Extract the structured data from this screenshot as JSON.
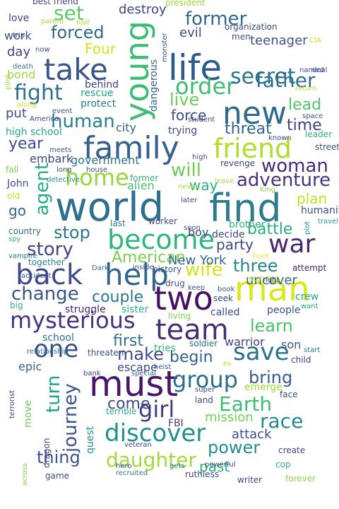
{
  "words": [
    {
      "text": "world",
      "color": "#2c6f8e"
    },
    {
      "text": "find",
      "color": "#2c7c8d"
    },
    {
      "text": "life",
      "color": "#2c5a8c"
    },
    {
      "text": "family",
      "color": "#35608d"
    },
    {
      "text": "two",
      "color": "#450f63"
    },
    {
      "text": "man",
      "color": "#dbe61c"
    },
    {
      "text": "must",
      "color": "#49156c"
    },
    {
      "text": "young",
      "color": "#3bbd73"
    },
    {
      "text": "take",
      "color": "#3a548c"
    },
    {
      "text": "new",
      "color": "#2f6b8e"
    },
    {
      "text": "help",
      "color": "#33648d"
    },
    {
      "text": "become",
      "color": "#30b57c"
    },
    {
      "text": "friend",
      "color": "#b0dd2f"
    },
    {
      "text": "team",
      "color": "#46306e"
    },
    {
      "text": "back",
      "color": "#3e4a89"
    },
    {
      "text": "mysterious",
      "color": "#463480"
    },
    {
      "text": "one",
      "color": "#3b518a"
    },
    {
      "text": "discover",
      "color": "#21908c"
    },
    {
      "text": "order",
      "color": "#40bd72"
    },
    {
      "text": "home",
      "color": "#95d840"
    },
    {
      "text": "secret",
      "color": "#2b748e"
    },
    {
      "text": "fight",
      "color": "#2d708e"
    },
    {
      "text": "save",
      "color": "#2c728e"
    },
    {
      "text": "group",
      "color": "#2e6d8e"
    },
    {
      "text": "war",
      "color": "#482a70"
    },
    {
      "text": "girl",
      "color": "#3f3d83"
    },
    {
      "text": "daughter",
      "color": "#a3da37"
    },
    {
      "text": "Earth",
      "color": "#3fbc73"
    },
    {
      "text": "former",
      "color": "#30698e"
    },
    {
      "text": "father",
      "color": "#2e6f8e"
    },
    {
      "text": "adventure",
      "color": "#46337e"
    },
    {
      "text": "agent",
      "color": "#27ad81"
    },
    {
      "text": "journey",
      "color": "#3a548c"
    },
    {
      "text": "turn",
      "color": "#1fa088"
    },
    {
      "text": "change",
      "color": "#3b528b"
    },
    {
      "text": "story",
      "color": "#414487"
    },
    {
      "text": "woman",
      "color": "#472a7a"
    },
    {
      "text": "race",
      "color": "#24868e"
    },
    {
      "text": "set",
      "color": "#5ec962"
    },
    {
      "text": "stop",
      "color": "#2a788e"
    },
    {
      "text": "human",
      "color": "#27818e"
    },
    {
      "text": "forced",
      "color": "#31668e"
    },
    {
      "text": "wife",
      "color": "#d8e219"
    },
    {
      "text": "bring",
      "color": "#355e8d"
    },
    {
      "text": "make",
      "color": "#3e4c8a"
    },
    {
      "text": "thing",
      "color": "#3b528b"
    },
    {
      "text": "power",
      "color": "#228d8d"
    },
    {
      "text": "learn",
      "color": "#4ac16d"
    },
    {
      "text": "American",
      "color": "#7ad151"
    },
    {
      "text": "first",
      "color": "#2d718e"
    },
    {
      "text": "will",
      "color": "#6ccd5a"
    },
    {
      "text": "live",
      "color": "#6ccd5a"
    },
    {
      "text": "threat",
      "color": "#32648e"
    },
    {
      "text": "time",
      "color": "#433e85"
    },
    {
      "text": "lead",
      "color": "#52c569"
    },
    {
      "text": "year",
      "color": "#3d4e8a"
    },
    {
      "text": "three",
      "color": "#25848e"
    },
    {
      "text": "battle",
      "color": "#29af7f"
    },
    {
      "text": "come",
      "color": "#3f4788"
    },
    {
      "text": "couple",
      "color": "#2a768e"
    },
    {
      "text": "party",
      "color": "#404688"
    },
    {
      "text": "plan",
      "color": "#c8e020"
    },
    {
      "text": "past",
      "color": "#2db27d"
    },
    {
      "text": "force",
      "color": "#3f4889"
    },
    {
      "text": "government",
      "color": "#2b748e"
    },
    {
      "text": "begin",
      "color": "#34608d"
    },
    {
      "text": "New York",
      "color": "#31688e"
    },
    {
      "text": "Four",
      "color": "#d2e21b"
    },
    {
      "text": "mission",
      "color": "#75d054"
    },
    {
      "text": "attack",
      "color": "#3d4e8a"
    },
    {
      "text": "alien",
      "color": "#4ac16d"
    },
    {
      "text": "dangerous",
      "color": "#33638d"
    },
    {
      "text": "go",
      "color": "#31688e"
    },
    {
      "text": "way",
      "color": "#2db27d"
    },
    {
      "text": "boy",
      "color": "#404588"
    },
    {
      "text": "uncover",
      "color": "#31668e"
    },
    {
      "text": "warrior",
      "color": "#433e85"
    },
    {
      "text": "son",
      "color": "#3a548c"
    },
    {
      "text": "escape",
      "color": "#3e4989"
    },
    {
      "text": "quest",
      "color": "#21918c"
    },
    {
      "text": "evil",
      "color": "#3e4989"
    },
    {
      "text": "teenager",
      "color": "#3b528b"
    },
    {
      "text": "destroy",
      "color": "#404688"
    },
    {
      "text": "embark",
      "color": "#404688"
    },
    {
      "text": "day",
      "color": "#424186"
    },
    {
      "text": "put",
      "color": "#3b528b"
    },
    {
      "text": "city",
      "color": "#355f8d"
    },
    {
      "text": "high school",
      "color": "#22a884"
    },
    {
      "text": "rescue",
      "color": "#1fa088"
    },
    {
      "text": "bond",
      "color": "#9fda3a"
    },
    {
      "text": "work",
      "color": "#3d4e8a"
    },
    {
      "text": "love",
      "color": "#404688"
    },
    {
      "text": "protect",
      "color": "#2a778e"
    },
    {
      "text": "behind",
      "color": "#424086"
    },
    {
      "text": "trying",
      "color": "#3f4788"
    },
    {
      "text": "brother",
      "color": "#2fb47c"
    },
    {
      "text": "decide",
      "color": "#3e4989"
    },
    {
      "text": "epic",
      "color": "#34608d"
    },
    {
      "text": "school",
      "color": "#2b758e"
    },
    {
      "text": "threaten",
      "color": "#3e4c8a"
    },
    {
      "text": "tries",
      "color": "#32b67a"
    },
    {
      "text": "soldier",
      "color": "#2e6e8e"
    },
    {
      "text": "struggle",
      "color": "#482576"
    },
    {
      "text": "sister",
      "color": "#2fb47c"
    },
    {
      "text": "living",
      "color": "#7ad151"
    },
    {
      "text": "called",
      "color": "#3e4989"
    },
    {
      "text": "people",
      "color": "#3a548c"
    },
    {
      "text": "attempt",
      "color": "#481f70"
    },
    {
      "text": "crew",
      "color": "#22a884"
    },
    {
      "text": "want",
      "color": "#22a884"
    },
    {
      "text": "survive",
      "color": "#b8de29"
    },
    {
      "text": "history",
      "color": "#34618d"
    },
    {
      "text": "seek",
      "color": "#3f4788"
    },
    {
      "text": "book",
      "color": "#3b528b"
    },
    {
      "text": "keep",
      "color": "#3b528b"
    },
    {
      "text": "drug",
      "color": "#3e4c8a"
    },
    {
      "text": "child",
      "color": "#424086"
    },
    {
      "text": "start",
      "color": "#29798e"
    },
    {
      "text": "emerge",
      "color": "#a2da37"
    },
    {
      "text": "face",
      "color": "#3d4e8a"
    },
    {
      "text": "create",
      "color": "#3e4989"
    },
    {
      "text": "cop",
      "color": "#2eb37c"
    },
    {
      "text": "forever",
      "color": "#8ed645"
    },
    {
      "text": "writer",
      "color": "#404688"
    },
    {
      "text": "ruthless",
      "color": "#3e4a89"
    },
    {
      "text": "game",
      "color": "#3e4989"
    },
    {
      "text": "recruited",
      "color": "#2a788e"
    },
    {
      "text": "gets",
      "color": "#2b758e"
    },
    {
      "text": "hero",
      "color": "#3b528b"
    },
    {
      "text": "powerful",
      "color": "#3f4788"
    },
    {
      "text": "veteran",
      "color": "#3e4c8a"
    },
    {
      "text": "FBI",
      "color": "#424186"
    },
    {
      "text": "land",
      "color": "#3f4889"
    },
    {
      "text": "super",
      "color": "#3e4989"
    },
    {
      "text": "heist",
      "color": "#3a548c"
    },
    {
      "text": "special",
      "color": "#2f6b8e"
    },
    {
      "text": "bank",
      "color": "#424086"
    },
    {
      "text": "terrible",
      "color": "#2ab07f"
    },
    {
      "text": "move",
      "color": "#6ccd5a"
    },
    {
      "text": "dragon",
      "color": "#433d84"
    },
    {
      "text": "terrorist",
      "color": "#433d84"
    },
    {
      "text": "across",
      "color": "#7fd34e"
    },
    {
      "text": "relationship",
      "color": "#2f6c8e"
    },
    {
      "text": "big",
      "color": "#2eb37c"
    },
    {
      "text": "together",
      "color": "#26828e"
    },
    {
      "text": "accident",
      "color": "#3b528b"
    },
    {
      "text": "vampire",
      "color": "#2b748e"
    },
    {
      "text": "spy",
      "color": "#2fb47c"
    },
    {
      "text": "country",
      "color": "#31688e"
    },
    {
      "text": "Dark",
      "color": "#2a768e"
    },
    {
      "text": "inside",
      "color": "#3b528b"
    },
    {
      "text": "last",
      "color": "#2a788e"
    },
    {
      "text": "worker",
      "color": "#3e4a89"
    },
    {
      "text": "soon",
      "color": "#3b528b"
    },
    {
      "text": "later",
      "color": "#3f4788"
    },
    {
      "text": "never",
      "color": "#a8db34"
    },
    {
      "text": "leave",
      "color": "#9bd93c"
    },
    {
      "text": "King",
      "color": "#8bd646"
    },
    {
      "text": "revenge",
      "color": "#3e4989"
    },
    {
      "text": "humanity",
      "color": "#3d4d8a"
    },
    {
      "text": "travel",
      "color": "#21a585"
    },
    {
      "text": "plot",
      "color": "#21918c"
    },
    {
      "text": "former",
      "color": "#2fb47c"
    },
    {
      "text": "house",
      "color": "#3e4a89"
    },
    {
      "text": "detective",
      "color": "#23888e"
    },
    {
      "text": "John",
      "color": "#3e4a89"
    },
    {
      "text": "old",
      "color": "#c2df23"
    },
    {
      "text": "fall",
      "color": "#7ad151"
    },
    {
      "text": "long",
      "color": "#3e4989"
    },
    {
      "text": "meets",
      "color": "#3e4c8a"
    },
    {
      "text": "event",
      "color": "#3d4e8a"
    },
    {
      "text": "America",
      "color": "#424086"
    },
    {
      "text": "along",
      "color": "#d0e11c"
    },
    {
      "text": "pilot",
      "color": "#a5db36"
    },
    {
      "text": "death",
      "color": "#2a788e"
    },
    {
      "text": "now",
      "color": "#3e4989"
    },
    {
      "text": "trip",
      "color": "#3e4c8a"
    },
    {
      "text": "parent",
      "color": "#9bd93c"
    },
    {
      "text": "half",
      "color": "#b5de2b"
    },
    {
      "text": "best friend",
      "color": "#424186"
    },
    {
      "text": "monster",
      "color": "#3b528b"
    },
    {
      "text": "president",
      "color": "#9fda3a"
    },
    {
      "text": "organization",
      "color": "#3e4a89"
    },
    {
      "text": "men",
      "color": "#3e4c8a"
    },
    {
      "text": "CIA",
      "color": "#c8e020"
    },
    {
      "text": "named",
      "color": "#3e4a89"
    },
    {
      "text": "deal",
      "color": "#3b528b"
    },
    {
      "text": "return",
      "color": "#b8de29"
    },
    {
      "text": "space",
      "color": "#3d4e8a"
    },
    {
      "text": "leader",
      "color": "#2fb47c"
    },
    {
      "text": "known",
      "color": "#3e4989"
    },
    {
      "text": "street",
      "color": "#3b528b"
    },
    {
      "text": "student",
      "color": "#3e4989"
    },
    {
      "text": "high",
      "color": "#3e4989"
    },
    {
      "text": "ex",
      "color": "#cae11f"
    },
    {
      "text": "right",
      "color": "#3e4989"
    },
    {
      "text": "hunt",
      "color": "#efe51c"
    },
    {
      "text": "may",
      "color": "#3b528b"
    },
    {
      "text": "whose",
      "color": "#3e4989"
    }
  ]
}
